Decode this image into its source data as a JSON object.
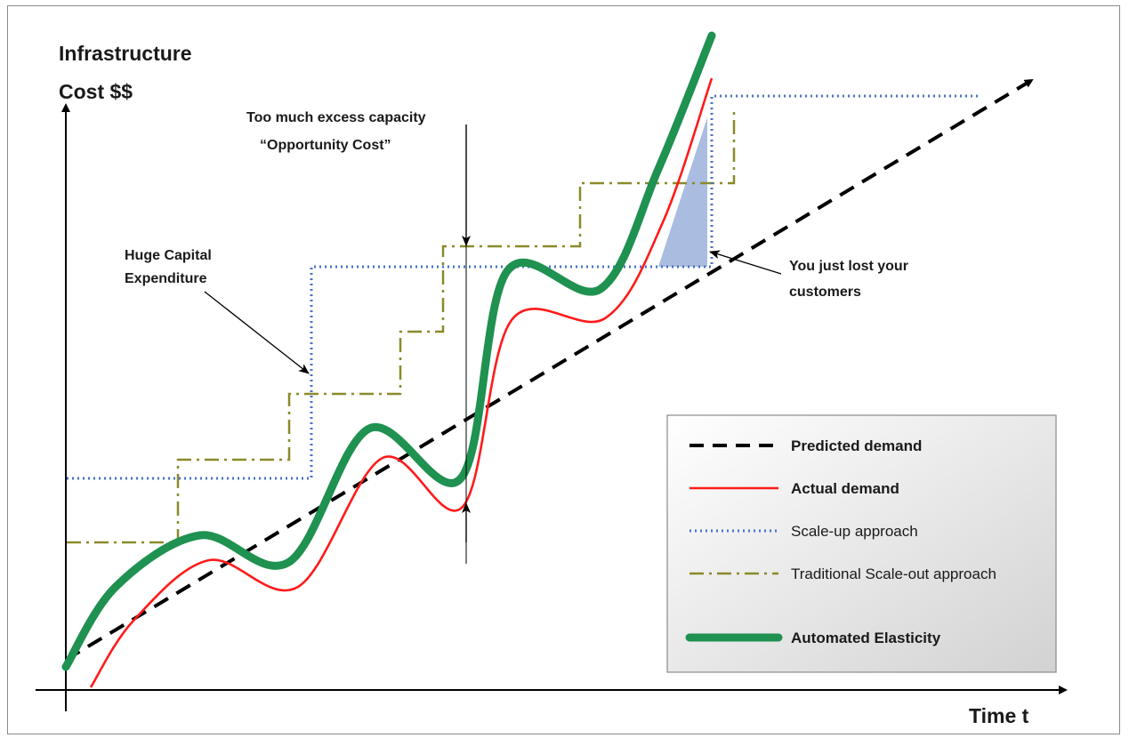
{
  "chart_data": {
    "type": "line",
    "title": "",
    "ylabel": [
      "Infrastructure",
      "Cost $$"
    ],
    "xlabel": "Time t",
    "legend_position": "bottom-right",
    "annotations": {
      "excess": [
        "Too much excess capacity",
        "“Opportunity Cost”"
      ],
      "capex": [
        "Huge Capital",
        "Expenditure"
      ],
      "lost": [
        "You just lost your",
        "customers"
      ]
    },
    "series": [
      {
        "name": "Predicted demand",
        "bold": true,
        "color": "#000000",
        "style": "dashed",
        "points": [
          [
            74,
            742
          ],
          [
            1160,
            90
          ]
        ]
      },
      {
        "name": "Actual demand",
        "bold": true,
        "color": "#ff1a1a",
        "style": "solid",
        "points": [
          [
            102,
            773
          ],
          [
            150,
            698
          ],
          [
            235,
            630
          ],
          [
            335,
            660
          ],
          [
            430,
            515
          ],
          [
            520,
            570
          ],
          [
            575,
            360
          ],
          [
            680,
            358
          ],
          [
            745,
            250
          ],
          [
            800,
            88
          ]
        ]
      },
      {
        "name": "Scale-up approach",
        "bold": false,
        "color": "#4a72c9",
        "style": "dotted",
        "points": [
          [
            75,
            538
          ],
          [
            350,
            538
          ],
          [
            350,
            300
          ],
          [
            800,
            300
          ],
          [
            800,
            108
          ],
          [
            1100,
            108
          ]
        ]
      },
      {
        "name": "Traditional Scale-out approach",
        "bold": false,
        "color": "#8b8a2a",
        "style": "dashdot",
        "points": [
          [
            75,
            610
          ],
          [
            200,
            610
          ],
          [
            200,
            517
          ],
          [
            325,
            517
          ],
          [
            325,
            443
          ],
          [
            450,
            443
          ],
          [
            450,
            373
          ],
          [
            498,
            373
          ],
          [
            498,
            277
          ],
          [
            652,
            277
          ],
          [
            652,
            206
          ],
          [
            825,
            206
          ],
          [
            825,
            122
          ]
        ]
      },
      {
        "name": "Automated Elasticity",
        "bold": true,
        "color": "#1f9150",
        "style": "thick",
        "points": [
          [
            74,
            750
          ],
          [
            130,
            660
          ],
          [
            225,
            602
          ],
          [
            325,
            632
          ],
          [
            415,
            482
          ],
          [
            518,
            538
          ],
          [
            570,
            305
          ],
          [
            675,
            325
          ],
          [
            740,
            190
          ],
          [
            800,
            40
          ]
        ]
      }
    ]
  }
}
